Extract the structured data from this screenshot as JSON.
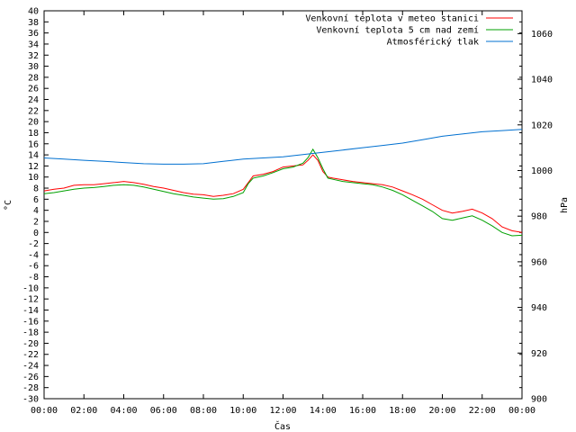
{
  "chart_data": {
    "type": "line",
    "xlabel": "Čas",
    "ylabel_left": "°C",
    "ylabel_right": "hPa",
    "x_ticks": [
      "00:00",
      "02:00",
      "04:00",
      "06:00",
      "08:00",
      "10:00",
      "12:00",
      "14:00",
      "16:00",
      "18:00",
      "20:00",
      "22:00",
      "00:00"
    ],
    "xlim_hours": [
      0,
      24
    ],
    "ylim_left": [
      -30,
      40
    ],
    "y_tick_step_left": 2,
    "ylim_right": [
      900,
      1070
    ],
    "y_ticks_right": [
      900,
      920,
      940,
      960,
      980,
      1000,
      1020,
      1040,
      1060
    ],
    "legend_position": "top-right",
    "series": [
      {
        "name": "Venkovní teplota v meteo stanici",
        "axis": "left",
        "color": "#ff0000",
        "x": [
          0,
          0.5,
          1,
          1.5,
          2,
          2.5,
          3,
          3.5,
          4,
          4.5,
          5,
          5.5,
          6,
          6.5,
          7,
          7.5,
          8,
          8.5,
          9,
          9.5,
          10,
          10.25,
          10.5,
          11,
          11.5,
          12,
          12.5,
          13,
          13.25,
          13.5,
          13.75,
          14,
          14.25,
          14.5,
          15,
          15.5,
          16,
          16.5,
          17,
          17.5,
          18,
          18.5,
          19,
          19.5,
          20,
          20.5,
          21,
          21.5,
          22,
          22.5,
          23,
          23.5,
          24
        ],
        "values": [
          7.5,
          7.8,
          8.0,
          8.5,
          8.6,
          8.6,
          8.8,
          9.0,
          9.2,
          9.0,
          8.7,
          8.3,
          8.0,
          7.6,
          7.2,
          6.9,
          6.8,
          6.5,
          6.7,
          7.0,
          7.8,
          9.0,
          10.2,
          10.5,
          11.0,
          11.8,
          12.0,
          12.2,
          13.0,
          14.0,
          13.0,
          11.0,
          10.0,
          9.8,
          9.5,
          9.2,
          9.0,
          8.8,
          8.6,
          8.2,
          7.5,
          6.8,
          6.0,
          5.0,
          4.0,
          3.5,
          3.8,
          4.2,
          3.5,
          2.5,
          1.0,
          0.3,
          0.0
        ]
      },
      {
        "name": "Venkovní teplota 5 cm nad zemí",
        "axis": "left",
        "color": "#00a000",
        "x": [
          0,
          0.5,
          1,
          1.5,
          2,
          2.5,
          3,
          3.5,
          4,
          4.5,
          5,
          5.5,
          6,
          6.5,
          7,
          7.5,
          8,
          8.5,
          9,
          9.5,
          10,
          10.25,
          10.5,
          11,
          11.5,
          12,
          12.5,
          13,
          13.25,
          13.5,
          13.75,
          14,
          14.25,
          14.5,
          15,
          15.5,
          16,
          16.5,
          17,
          17.5,
          18,
          18.5,
          19,
          19.5,
          20,
          20.5,
          21,
          21.5,
          22,
          22.5,
          23,
          23.5,
          24
        ],
        "values": [
          7.0,
          7.2,
          7.5,
          7.8,
          8.0,
          8.1,
          8.3,
          8.5,
          8.6,
          8.5,
          8.2,
          7.8,
          7.4,
          7.0,
          6.7,
          6.4,
          6.2,
          6.0,
          6.1,
          6.5,
          7.2,
          8.8,
          9.8,
          10.2,
          10.8,
          11.5,
          11.8,
          12.5,
          13.5,
          15.0,
          13.5,
          11.5,
          9.8,
          9.6,
          9.2,
          9.0,
          8.8,
          8.6,
          8.2,
          7.6,
          6.8,
          5.8,
          4.8,
          3.8,
          2.5,
          2.2,
          2.6,
          3.0,
          2.2,
          1.2,
          0.0,
          -0.6,
          -0.5
        ]
      },
      {
        "name": "Atmosférický tlak",
        "axis": "right",
        "color": "#0070d0",
        "x": [
          0,
          1,
          2,
          3,
          4,
          5,
          6,
          7,
          8,
          9,
          10,
          11,
          12,
          13,
          14,
          15,
          16,
          17,
          18,
          19,
          20,
          21,
          22,
          23,
          24
        ],
        "values": [
          1005.5,
          1005.0,
          1004.5,
          1004.0,
          1003.5,
          1003.0,
          1002.8,
          1002.8,
          1003.0,
          1004.0,
          1005.0,
          1005.5,
          1006.0,
          1007.0,
          1008.0,
          1009.0,
          1010.0,
          1011.0,
          1012.0,
          1013.5,
          1015.0,
          1016.0,
          1017.0,
          1017.5,
          1018.0
        ]
      }
    ]
  }
}
